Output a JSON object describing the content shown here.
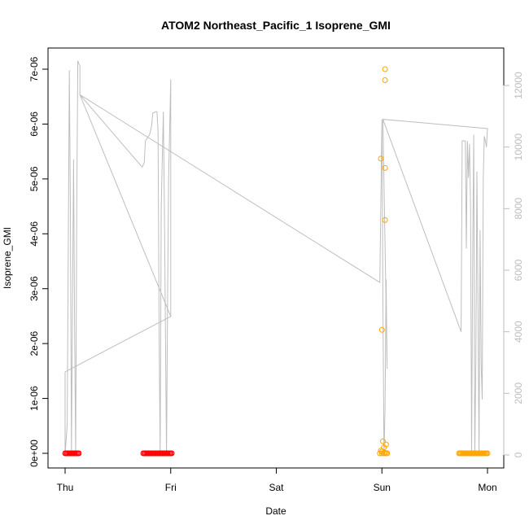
{
  "chart_data": {
    "type": "scatter",
    "title": "ATOM2 Northeast_Pacific_1 Isoprene_GMI",
    "xlabel": "Date",
    "ylabel": "Isoprene_GMI",
    "x_ticks": [
      "Thu",
      "Fri",
      "Sat",
      "Sun",
      "Mon"
    ],
    "xlim": [
      0,
      4.0
    ],
    "ylim": [
      0,
      7.1e-06
    ],
    "y_ticks": [
      0,
      1e-06,
      2e-06,
      3e-06,
      4e-06,
      5e-06,
      6e-06,
      7e-06
    ],
    "y_tick_labels": [
      "0e+00",
      "1e-06",
      "2e-06",
      "3e-06",
      "4e-06",
      "5e-06",
      "6e-06",
      "7e-06"
    ],
    "y2_ticks": [
      0,
      2000,
      4000,
      6000,
      8000,
      10000,
      12000
    ],
    "y2_tick_labels": [
      "0",
      "2000",
      "4000",
      "6000",
      "8000",
      "10000",
      "12000"
    ],
    "y2lim": [
      -250,
      13500
    ],
    "grid": false,
    "colors": {
      "red": "#ff0000",
      "orange": "#ffa500",
      "grey_line": "#bebebe",
      "right_axis": "#bdbdbd"
    },
    "series": [
      {
        "color": "#ff0000",
        "axis": "left",
        "marker": "circle-open",
        "points": [
          [
            0.0,
            0
          ],
          [
            0.01,
            0
          ],
          [
            0.02,
            0
          ],
          [
            0.03,
            0
          ],
          [
            0.04,
            0
          ],
          [
            0.05,
            0
          ],
          [
            0.06,
            0
          ],
          [
            0.07,
            0
          ],
          [
            0.08,
            0
          ],
          [
            0.09,
            0
          ],
          [
            0.1,
            0
          ],
          [
            0.11,
            0
          ],
          [
            0.12,
            0
          ],
          [
            0.13,
            0
          ],
          [
            0.74,
            0
          ],
          [
            0.75,
            0
          ],
          [
            0.76,
            0
          ],
          [
            0.77,
            0
          ],
          [
            0.78,
            0
          ],
          [
            0.79,
            0
          ],
          [
            0.8,
            0
          ],
          [
            0.81,
            0
          ],
          [
            0.82,
            0
          ],
          [
            0.83,
            0
          ],
          [
            0.84,
            0
          ],
          [
            0.85,
            0
          ],
          [
            0.86,
            0
          ],
          [
            0.87,
            0
          ],
          [
            0.88,
            0
          ],
          [
            0.89,
            0
          ],
          [
            0.9,
            0
          ],
          [
            0.91,
            0
          ],
          [
            0.92,
            0
          ],
          [
            0.93,
            0
          ],
          [
            0.94,
            0
          ],
          [
            0.95,
            0
          ],
          [
            0.96,
            0
          ],
          [
            0.97,
            0
          ],
          [
            0.98,
            0
          ],
          [
            0.99,
            0
          ],
          [
            1.0,
            0
          ],
          [
            1.01,
            0
          ]
        ]
      },
      {
        "color": "#ffa500",
        "axis": "left",
        "marker": "circle-open",
        "points": [
          [
            3.03,
            7e-06
          ],
          [
            3.03,
            6.8e-06
          ],
          [
            2.99,
            5.37e-06
          ],
          [
            3.03,
            5.2e-06
          ],
          [
            3.03,
            4.25e-06
          ],
          [
            3.0,
            2.25e-06
          ],
          [
            3.01,
            2.2e-07
          ],
          [
            3.04,
            1.6e-07
          ],
          [
            3.02,
            1.1e-07
          ],
          [
            2.99,
            5e-08
          ],
          [
            3.0,
            3e-08
          ],
          [
            3.03,
            1e-08
          ],
          [
            3.02,
            0
          ],
          [
            3.04,
            0
          ],
          [
            3.0,
            0
          ],
          [
            2.98,
            0
          ],
          [
            3.05,
            0
          ],
          [
            3.73,
            0
          ],
          [
            3.74,
            0
          ],
          [
            3.75,
            0
          ],
          [
            3.76,
            0
          ],
          [
            3.77,
            0
          ],
          [
            3.78,
            0
          ],
          [
            3.79,
            0
          ],
          [
            3.8,
            0
          ],
          [
            3.81,
            0
          ],
          [
            3.82,
            0
          ],
          [
            3.83,
            0
          ],
          [
            3.84,
            0
          ],
          [
            3.85,
            0
          ],
          [
            3.86,
            0
          ],
          [
            3.87,
            0
          ],
          [
            3.88,
            0
          ],
          [
            3.89,
            0
          ],
          [
            3.9,
            0
          ],
          [
            3.91,
            0
          ],
          [
            3.92,
            0
          ],
          [
            3.93,
            0
          ],
          [
            3.94,
            0
          ],
          [
            3.95,
            0
          ],
          [
            3.96,
            0
          ],
          [
            3.97,
            0
          ],
          [
            3.98,
            0
          ],
          [
            3.99,
            0
          ],
          [
            4.0,
            0
          ]
        ]
      }
    ],
    "line_series": {
      "color": "#bebebe",
      "axis": "right",
      "points": [
        [
          0.0,
          2700
        ],
        [
          0.0,
          0
        ],
        [
          0.02,
          1000
        ],
        [
          0.04,
          12500
        ],
        [
          0.05,
          8000
        ],
        [
          0.06,
          0
        ],
        [
          0.07,
          5000
        ],
        [
          0.08,
          9600
        ],
        [
          0.09,
          4000
        ],
        [
          0.1,
          0
        ],
        [
          0.11,
          8000
        ],
        [
          0.12,
          12800
        ],
        [
          0.13,
          12700
        ],
        [
          0.14,
          12650
        ],
        [
          0.14,
          11700
        ],
        [
          0.73,
          9350
        ],
        [
          0.75,
          9500
        ],
        [
          0.76,
          10200
        ],
        [
          0.8,
          10400
        ],
        [
          0.82,
          10700
        ],
        [
          0.83,
          11100
        ],
        [
          0.86,
          11150
        ],
        [
          0.87,
          11150
        ],
        [
          0.88,
          10500
        ],
        [
          0.89,
          4000
        ],
        [
          0.9,
          0
        ],
        [
          0.91,
          8000
        ],
        [
          0.93,
          11150
        ],
        [
          0.94,
          8000
        ],
        [
          0.95,
          4000
        ],
        [
          0.96,
          0
        ],
        [
          0.97,
          5000
        ],
        [
          0.98,
          9000
        ],
        [
          1.0,
          12200
        ],
        [
          1.0,
          4500
        ],
        [
          0.0,
          2700
        ],
        [
          1.0,
          4500
        ],
        [
          0.14,
          11700
        ],
        [
          2.98,
          5600
        ],
        [
          3.0,
          10900
        ],
        [
          3.01,
          5000
        ],
        [
          3.02,
          0
        ],
        [
          3.03,
          1500
        ],
        [
          3.04,
          5700
        ],
        [
          3.05,
          2800
        ],
        [
          3.01,
          10900
        ],
        [
          4.0,
          10600
        ],
        [
          3.99,
          10000
        ],
        [
          3.98,
          10200
        ],
        [
          3.97,
          10350
        ],
        [
          3.96,
          9000
        ],
        [
          3.95,
          1800
        ],
        [
          3.94,
          3000
        ],
        [
          3.93,
          7300
        ],
        [
          3.92,
          0
        ],
        [
          3.91,
          5000
        ],
        [
          3.9,
          9200
        ],
        [
          3.89,
          3000
        ],
        [
          3.88,
          0
        ],
        [
          3.87,
          10400
        ],
        [
          3.86,
          6500
        ],
        [
          3.85,
          0
        ],
        [
          3.84,
          8000
        ],
        [
          3.83,
          10100
        ],
        [
          3.82,
          9000
        ],
        [
          3.81,
          10200
        ],
        [
          3.8,
          6700
        ],
        [
          3.79,
          10200
        ],
        [
          3.78,
          10200
        ],
        [
          3.76,
          10200
        ],
        [
          3.75,
          4000
        ],
        [
          3.01,
          10900
        ],
        [
          3.75,
          4000
        ]
      ]
    }
  }
}
